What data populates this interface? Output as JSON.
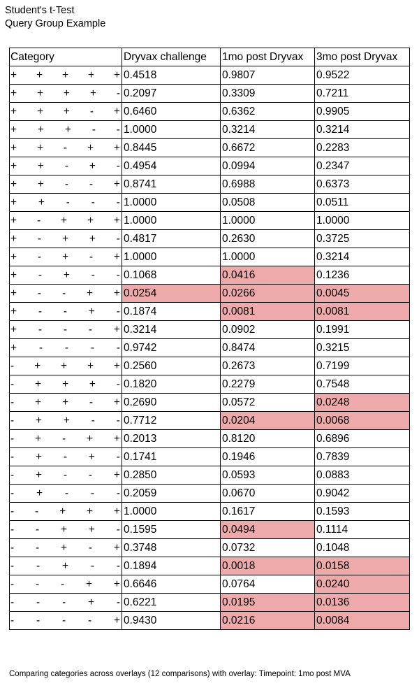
{
  "title_lines": [
    "Student's t-Test",
    "Query Group Example"
  ],
  "colors": {
    "significant": "#eeaaaa"
  },
  "table": {
    "headers": [
      "Category",
      "Dryvax challenge",
      "1mo post Dryvax",
      "3mo post Dryvax"
    ],
    "rows": [
      {
        "signs": [
          "+",
          "+",
          "+",
          "+",
          "+"
        ],
        "values": [
          "0.4518",
          "0.9807",
          "0.9522"
        ],
        "highlight": [
          false,
          false,
          false
        ]
      },
      {
        "signs": [
          "+",
          "+",
          "+",
          "+",
          "-"
        ],
        "values": [
          "0.2097",
          "0.3309",
          "0.7211"
        ],
        "highlight": [
          false,
          false,
          false
        ]
      },
      {
        "signs": [
          "+",
          "+",
          "+",
          "-",
          "+"
        ],
        "values": [
          "0.6460",
          "0.6362",
          "0.9905"
        ],
        "highlight": [
          false,
          false,
          false
        ]
      },
      {
        "signs": [
          "+",
          "+",
          "+",
          "-",
          "-"
        ],
        "values": [
          "1.0000",
          "0.3214",
          "0.3214"
        ],
        "highlight": [
          false,
          false,
          false
        ]
      },
      {
        "signs": [
          "+",
          "+",
          "-",
          "+",
          "+"
        ],
        "values": [
          "0.8445",
          "0.6672",
          "0.2283"
        ],
        "highlight": [
          false,
          false,
          false
        ]
      },
      {
        "signs": [
          "+",
          "+",
          "-",
          "+",
          "-"
        ],
        "values": [
          "0.4954",
          "0.0994",
          "0.2347"
        ],
        "highlight": [
          false,
          false,
          false
        ]
      },
      {
        "signs": [
          "+",
          "+",
          "-",
          "-",
          "+"
        ],
        "values": [
          "0.8741",
          "0.6988",
          "0.6373"
        ],
        "highlight": [
          false,
          false,
          false
        ]
      },
      {
        "signs": [
          "+",
          "+",
          "-",
          "-",
          "-"
        ],
        "values": [
          "1.0000",
          "0.0508",
          "0.0511"
        ],
        "highlight": [
          false,
          false,
          false
        ]
      },
      {
        "signs": [
          "+",
          "-",
          "+",
          "+",
          "+"
        ],
        "values": [
          "1.0000",
          "1.0000",
          "1.0000"
        ],
        "highlight": [
          false,
          false,
          false
        ]
      },
      {
        "signs": [
          "+",
          "-",
          "+",
          "+",
          "-"
        ],
        "values": [
          "0.4817",
          "0.2630",
          "0.3725"
        ],
        "highlight": [
          false,
          false,
          false
        ]
      },
      {
        "signs": [
          "+",
          "-",
          "+",
          "-",
          "+"
        ],
        "values": [
          "1.0000",
          "1.0000",
          "0.3214"
        ],
        "highlight": [
          false,
          false,
          false
        ]
      },
      {
        "signs": [
          "+",
          "-",
          "+",
          "-",
          "-"
        ],
        "values": [
          "0.1068",
          "0.0416",
          "0.1236"
        ],
        "highlight": [
          false,
          true,
          false
        ]
      },
      {
        "signs": [
          "+",
          "-",
          "-",
          "+",
          "+"
        ],
        "values": [
          "0.0254",
          "0.0266",
          "0.0045"
        ],
        "highlight": [
          true,
          true,
          true
        ]
      },
      {
        "signs": [
          "+",
          "-",
          "-",
          "+",
          "-"
        ],
        "values": [
          "0.1874",
          "0.0081",
          "0.0081"
        ],
        "highlight": [
          false,
          true,
          true
        ]
      },
      {
        "signs": [
          "+",
          "-",
          "-",
          "-",
          "+"
        ],
        "values": [
          "0.3214",
          "0.0902",
          "0.1991"
        ],
        "highlight": [
          false,
          false,
          false
        ]
      },
      {
        "signs": [
          "+",
          "-",
          "-",
          "-",
          "-"
        ],
        "values": [
          "0.9742",
          "0.8474",
          "0.3215"
        ],
        "highlight": [
          false,
          false,
          false
        ]
      },
      {
        "signs": [
          "-",
          "+",
          "+",
          "+",
          "+"
        ],
        "values": [
          "0.2560",
          "0.2673",
          "0.7199"
        ],
        "highlight": [
          false,
          false,
          false
        ]
      },
      {
        "signs": [
          "-",
          "+",
          "+",
          "+",
          "-"
        ],
        "values": [
          "0.1820",
          "0.2279",
          "0.7548"
        ],
        "highlight": [
          false,
          false,
          false
        ]
      },
      {
        "signs": [
          "-",
          "+",
          "+",
          "-",
          "+"
        ],
        "values": [
          "0.2690",
          "0.0572",
          "0.0248"
        ],
        "highlight": [
          false,
          false,
          true
        ]
      },
      {
        "signs": [
          "-",
          "+",
          "+",
          "-",
          "-"
        ],
        "values": [
          "0.7712",
          "0.0204",
          "0.0068"
        ],
        "highlight": [
          false,
          true,
          true
        ]
      },
      {
        "signs": [
          "-",
          "+",
          "-",
          "+",
          "+"
        ],
        "values": [
          "0.2013",
          "0.8120",
          "0.6896"
        ],
        "highlight": [
          false,
          false,
          false
        ]
      },
      {
        "signs": [
          "-",
          "+",
          "-",
          "+",
          "-"
        ],
        "values": [
          "0.1741",
          "0.1946",
          "0.7839"
        ],
        "highlight": [
          false,
          false,
          false
        ]
      },
      {
        "signs": [
          "-",
          "+",
          "-",
          "-",
          "+"
        ],
        "values": [
          "0.2850",
          "0.0593",
          "0.0883"
        ],
        "highlight": [
          false,
          false,
          false
        ]
      },
      {
        "signs": [
          "-",
          "+",
          "-",
          "-",
          "-"
        ],
        "values": [
          "0.2059",
          "0.0670",
          "0.9042"
        ],
        "highlight": [
          false,
          false,
          false
        ]
      },
      {
        "signs": [
          "-",
          "-",
          "+",
          "+",
          "+"
        ],
        "values": [
          "1.0000",
          "0.1617",
          "0.1593"
        ],
        "highlight": [
          false,
          false,
          false
        ]
      },
      {
        "signs": [
          "-",
          "-",
          "+",
          "+",
          "-"
        ],
        "values": [
          "0.1595",
          "0.0494",
          "0.1114"
        ],
        "highlight": [
          false,
          true,
          false
        ]
      },
      {
        "signs": [
          "-",
          "-",
          "+",
          "-",
          "+"
        ],
        "values": [
          "0.3748",
          "0.0732",
          "0.1048"
        ],
        "highlight": [
          false,
          false,
          false
        ]
      },
      {
        "signs": [
          "-",
          "-",
          "+",
          "-",
          "-"
        ],
        "values": [
          "0.1894",
          "0.0018",
          "0.0158"
        ],
        "highlight": [
          false,
          true,
          true
        ]
      },
      {
        "signs": [
          "-",
          "-",
          "-",
          "+",
          "+"
        ],
        "values": [
          "0.6646",
          "0.0764",
          "0.0240"
        ],
        "highlight": [
          false,
          false,
          true
        ]
      },
      {
        "signs": [
          "-",
          "-",
          "-",
          "+",
          "-"
        ],
        "values": [
          "0.6221",
          "0.0195",
          "0.0136"
        ],
        "highlight": [
          false,
          true,
          true
        ]
      },
      {
        "signs": [
          "-",
          "-",
          "-",
          "-",
          "+"
        ],
        "values": [
          "0.9430",
          "0.0216",
          "0.0084"
        ],
        "highlight": [
          false,
          true,
          true
        ]
      }
    ]
  },
  "footnote": "Comparing categories across overlays (12 comparisons) with overlay: Timepoint: 1mo post MVA"
}
